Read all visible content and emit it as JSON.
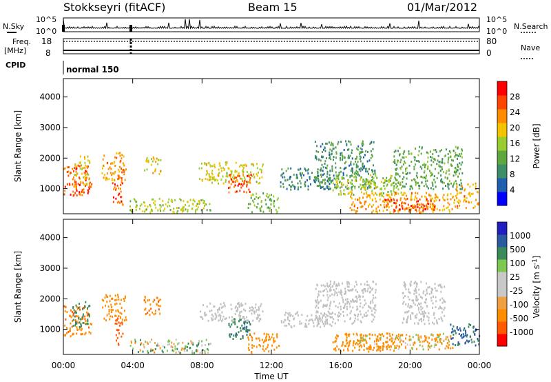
{
  "header": {
    "station": "Stokkseyri (fitACF)",
    "beam": "Beam 15",
    "date": "01/Mar/2012"
  },
  "strip_labels": {
    "nsky": "N.Sky",
    "nsearch": "N.Search",
    "freq_line1": "Freq.",
    "freq_line2": "[MHz]",
    "nave": "Nave",
    "cpid": "CPID",
    "cpid_value": "normal 150"
  },
  "strip_ticks": {
    "noise_left": [
      "10^5",
      "10^0"
    ],
    "noise_right": [
      "10^5",
      "10^0"
    ],
    "freq_left": [
      "18",
      "8"
    ],
    "nave_right": [
      "80",
      "0"
    ]
  },
  "colors": {
    "power": [
      "#0000ff",
      "#1f5fb0",
      "#3f8e6a",
      "#5fa840",
      "#9acd32",
      "#f4c400",
      "#ff8c00",
      "#ff4500",
      "#ff0000"
    ],
    "velocity": [
      "#ff0000",
      "#ff5a00",
      "#ff8c00",
      "#f0a040",
      "#c8c8c8",
      "#c8c8c8",
      "#7cc850",
      "#3a8a5a",
      "#2a5aa0",
      "#2020c0"
    ],
    "ground_scatter": "#c0c0c0"
  },
  "chart_data": [
    {
      "type": "heatmap",
      "name": "power",
      "ylabel": "Slant Range [km]",
      "xlabel": "",
      "x_ticks": [
        "00:00",
        "04:00",
        "08:00",
        "12:00",
        "16:00",
        "20:00",
        "00:00"
      ],
      "y_ticks": [
        1000,
        2000,
        3000,
        4000
      ],
      "xlim": [
        0,
        24
      ],
      "ylim": [
        180,
        4600
      ],
      "colorbar_label": "Power [dB]",
      "colorbar_ticks": [
        4,
        8,
        12,
        16,
        20,
        24,
        28
      ],
      "colorbar_range": [
        0,
        32
      ],
      "regions": [
        {
          "t": [
            0.0,
            1.6
          ],
          "r": [
            800,
            1800
          ],
          "v": 26
        },
        {
          "t": [
            0.6,
            1.5
          ],
          "r": [
            1000,
            2100
          ],
          "v": 20
        },
        {
          "t": [
            2.2,
            3.6
          ],
          "r": [
            1300,
            2200
          ],
          "v": 22
        },
        {
          "t": [
            2.8,
            3.4
          ],
          "r": [
            500,
            1400
          ],
          "v": 26
        },
        {
          "t": [
            4.6,
            5.6
          ],
          "r": [
            1500,
            2100
          ],
          "v": 20
        },
        {
          "t": [
            3.8,
            8.5
          ],
          "r": [
            250,
            700
          ],
          "v": 16
        },
        {
          "t": [
            7.8,
            11.5
          ],
          "r": [
            1200,
            1900
          ],
          "v": 18
        },
        {
          "t": [
            9.5,
            10.8
          ],
          "r": [
            900,
            1500
          ],
          "v": 26
        },
        {
          "t": [
            10.6,
            12.4
          ],
          "r": [
            250,
            900
          ],
          "v": 14
        },
        {
          "t": [
            12.5,
            15.5
          ],
          "r": [
            1000,
            1700
          ],
          "v": 8
        },
        {
          "t": [
            14.5,
            18.0
          ],
          "r": [
            1000,
            2600
          ],
          "v": 10
        },
        {
          "t": [
            15.5,
            19.5
          ],
          "r": [
            800,
            1500
          ],
          "v": 16
        },
        {
          "t": [
            16.5,
            22.5
          ],
          "r": [
            250,
            900
          ],
          "v": 22
        },
        {
          "t": [
            18.5,
            21.5
          ],
          "r": [
            300,
            700
          ],
          "v": 27
        },
        {
          "t": [
            19.0,
            23.0
          ],
          "r": [
            1000,
            2400
          ],
          "v": 12
        },
        {
          "t": [
            22.5,
            24.0
          ],
          "r": [
            400,
            1200
          ],
          "v": 22
        }
      ]
    },
    {
      "type": "heatmap",
      "name": "velocity",
      "ylabel": "Slant Range [km]",
      "xlabel": "Time UT",
      "x_ticks": [
        "00:00",
        "04:00",
        "08:00",
        "12:00",
        "16:00",
        "20:00",
        "00:00"
      ],
      "y_ticks": [
        1000,
        2000,
        3000,
        4000
      ],
      "xlim": [
        0,
        24
      ],
      "ylim": [
        180,
        4600
      ],
      "colorbar_label": "Velocity [m s",
      "colorbar_label_sup": "-1",
      "colorbar_label_end": "]",
      "colorbar_ticks": [
        "-1000",
        "-500",
        "-100",
        "-25",
        "25",
        "100",
        "500",
        "1000"
      ],
      "regions": [
        {
          "t": [
            0.0,
            1.6
          ],
          "r": [
            800,
            1800
          ],
          "v": -400
        },
        {
          "t": [
            0.5,
            1.5
          ],
          "r": [
            1100,
            2000
          ],
          "v": 300
        },
        {
          "t": [
            2.2,
            3.6
          ],
          "r": [
            1300,
            2200
          ],
          "v": -300
        },
        {
          "t": [
            2.9,
            3.4
          ],
          "r": [
            500,
            1400
          ],
          "v": -800
        },
        {
          "t": [
            4.6,
            5.6
          ],
          "r": [
            1500,
            2100
          ],
          "v": -400
        },
        {
          "t": [
            3.8,
            8.5
          ],
          "r": [
            250,
            700
          ],
          "v": 60
        },
        {
          "t": [
            7.8,
            11.5
          ],
          "r": [
            1300,
            1900
          ],
          "v": 0
        },
        {
          "t": [
            9.5,
            10.8
          ],
          "r": [
            700,
            1400
          ],
          "v": 400
        },
        {
          "t": [
            10.6,
            12.4
          ],
          "r": [
            250,
            900
          ],
          "v": -300
        },
        {
          "t": [
            12.5,
            15.5
          ],
          "r": [
            1100,
            1600
          ],
          "v": 0
        },
        {
          "t": [
            14.5,
            18.0
          ],
          "r": [
            1200,
            2600
          ],
          "v": 0
        },
        {
          "t": [
            15.5,
            19.5
          ],
          "r": [
            300,
            900
          ],
          "v": -300
        },
        {
          "t": [
            17.0,
            22.5
          ],
          "r": [
            350,
            900
          ],
          "v": -120
        },
        {
          "t": [
            19.5,
            22.0
          ],
          "r": [
            1200,
            2600
          ],
          "v": 0
        },
        {
          "t": [
            22.3,
            24.0
          ],
          "r": [
            500,
            1200
          ],
          "v": 600
        }
      ]
    }
  ]
}
